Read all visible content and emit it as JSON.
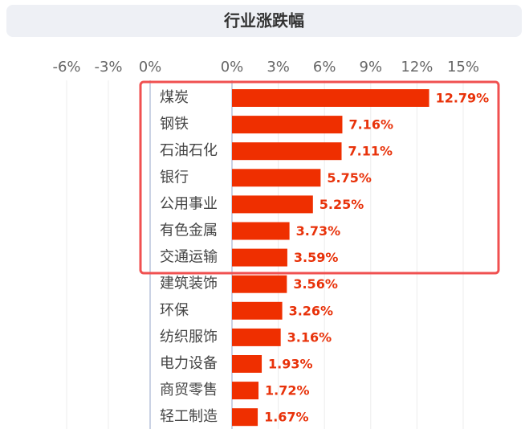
{
  "chart_data": {
    "type": "bar",
    "orientation": "horizontal",
    "title": "行业涨跌幅",
    "categories": [
      "煤炭",
      "钢铁",
      "石油石化",
      "银行",
      "公用事业",
      "有色金属",
      "交通运输",
      "建筑装饰",
      "环保",
      "纺织服饰",
      "电力设备",
      "商贸零售",
      "轻工制造"
    ],
    "values": [
      12.79,
      7.16,
      7.11,
      5.75,
      5.25,
      3.73,
      3.59,
      3.56,
      3.26,
      3.16,
      1.93,
      1.72,
      1.67
    ],
    "value_labels": [
      "12.79%",
      "7.16%",
      "7.11%",
      "5.75%",
      "5.25%",
      "3.73%",
      "3.59%",
      "3.56%",
      "3.26%",
      "3.16%",
      "1.93%",
      "1.72%",
      "1.67%"
    ],
    "color": "#ef2f00",
    "xlim": [
      0,
      15
    ],
    "xticks": [
      {
        "value": 0,
        "label": "0%"
      },
      {
        "value": 3,
        "label": "3%"
      },
      {
        "value": 6,
        "label": "6%"
      },
      {
        "value": 9,
        "label": "9%"
      },
      {
        "value": 12,
        "label": "12%"
      },
      {
        "value": 15,
        "label": "15%"
      }
    ],
    "x2lim": [
      -6,
      0
    ],
    "x2ticks": [
      {
        "value": -6,
        "label": "-6%"
      },
      {
        "value": -3,
        "label": "-3%"
      },
      {
        "value": 0,
        "label": "0%"
      }
    ],
    "grid": true
  }
}
